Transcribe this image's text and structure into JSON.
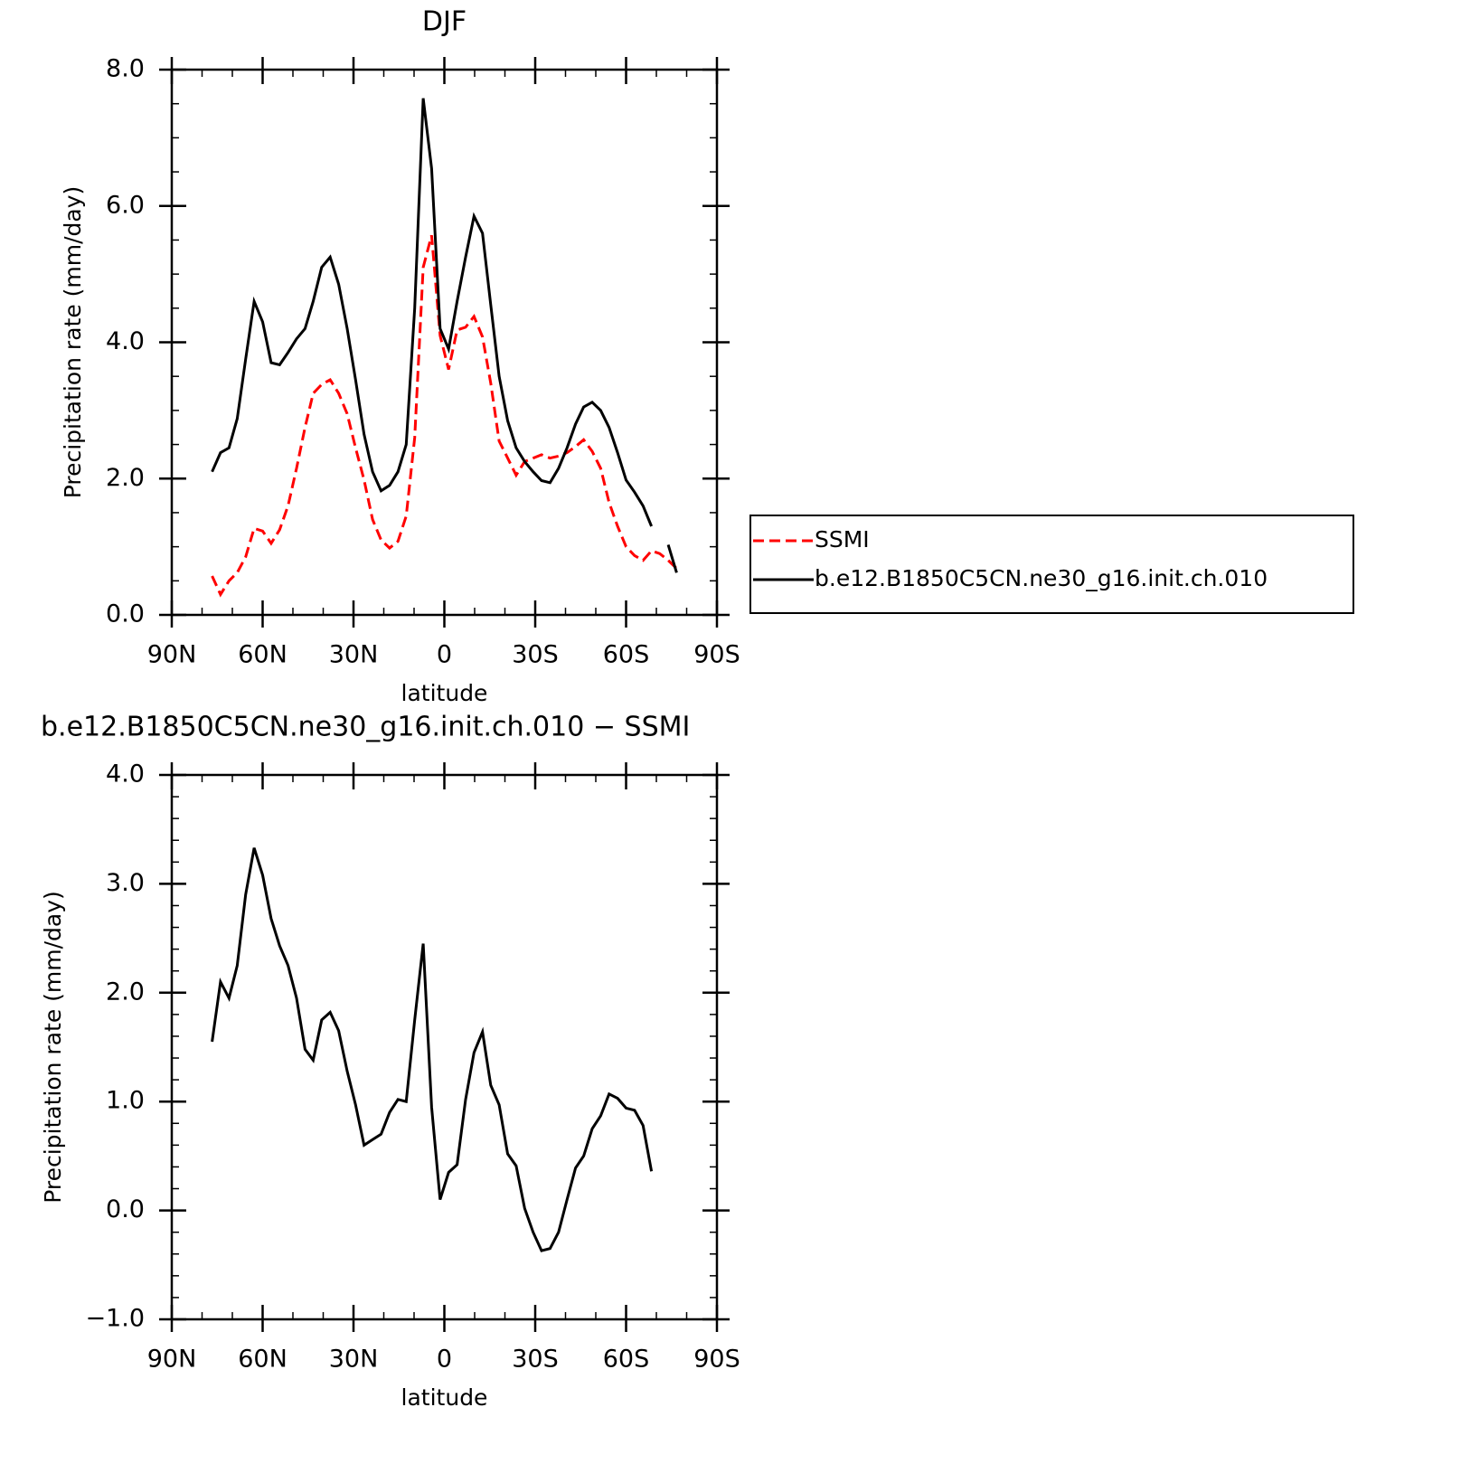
{
  "chart_data": [
    {
      "type": "line",
      "title": "DJF",
      "xlabel": "latitude",
      "ylabel": "Precipitation rate (mm/day)",
      "x": [
        76.7,
        73.9,
        71.1,
        68.4,
        65.6,
        62.8,
        60.0,
        57.2,
        54.4,
        51.6,
        48.8,
        46.0,
        43.3,
        40.5,
        37.7,
        34.9,
        32.1,
        29.3,
        26.5,
        23.7,
        20.9,
        18.1,
        15.3,
        12.6,
        9.8,
        7.0,
        4.2,
        1.4,
        -1.4,
        -4.2,
        -7.0,
        -9.8,
        -12.6,
        -15.3,
        -18.1,
        -20.9,
        -23.7,
        -26.5,
        -29.3,
        -32.1,
        -34.9,
        -37.7,
        -40.5,
        -43.3,
        -46.0,
        -48.8,
        -51.6,
        -54.4,
        -57.2,
        -60.0,
        -62.8,
        -65.6,
        -68.4,
        -71.1,
        -73.9,
        -76.7
      ],
      "xlim": [
        90,
        -90
      ],
      "xticks": [
        {
          "value": 90,
          "label": "90N"
        },
        {
          "value": 60,
          "label": "60N"
        },
        {
          "value": 30,
          "label": "30N"
        },
        0,
        {
          "value": -30,
          "label": "30S"
        },
        {
          "value": -60,
          "label": "60S"
        },
        {
          "value": -90,
          "label": "90S"
        }
      ],
      "xminorticks": [
        80,
        70,
        50,
        40,
        20,
        10,
        -10,
        -20,
        -40,
        -50,
        -70,
        -80
      ],
      "ylim": [
        0,
        8
      ],
      "yticks": [
        {
          "value": 0,
          "label": "0.0"
        },
        {
          "value": 2,
          "label": "2.0"
        },
        {
          "value": 4,
          "label": "4.0"
        },
        {
          "value": 6,
          "label": "6.0"
        },
        {
          "value": 8,
          "label": "8.0"
        }
      ],
      "yminorticks": [
        0.5,
        1,
        1.5,
        2.5,
        3,
        3.5,
        4.5,
        5,
        5.5,
        6.5,
        7,
        7.5
      ],
      "legend": "right",
      "series": [
        {
          "name": "SSMI",
          "color": "#ff0000",
          "dash": "dashed",
          "values": [
            0.57,
            0.3,
            0.5,
            0.62,
            0.85,
            1.27,
            1.23,
            1.05,
            1.25,
            1.6,
            2.15,
            2.75,
            3.25,
            3.38,
            3.45,
            3.25,
            2.95,
            2.45,
            1.98,
            1.4,
            1.1,
            0.98,
            1.08,
            1.45,
            2.6,
            5.1,
            5.57,
            4.1,
            3.6,
            4.18,
            4.22,
            4.38,
            4.08,
            3.4,
            2.55,
            2.3,
            2.05,
            2.25,
            2.3,
            2.35,
            2.3,
            2.33,
            2.38,
            2.47,
            2.57,
            2.4,
            2.15,
            1.65,
            1.3,
            1.0,
            0.87,
            0.8,
            0.94,
            0.9,
            0.8,
            0.68
          ]
        },
        {
          "name": "b.e12.B1850C5CN.ne30_g16.init.ch.010",
          "color": "#000000",
          "dash": "solid",
          "values": [
            2.1,
            2.38,
            2.45,
            2.88,
            3.75,
            4.6,
            4.3,
            3.7,
            3.67,
            3.85,
            4.05,
            4.2,
            4.6,
            5.1,
            5.25,
            4.85,
            4.2,
            3.45,
            2.65,
            2.1,
            1.82,
            1.9,
            2.1,
            2.5,
            4.5,
            7.58,
            6.55,
            4.2,
            3.9,
            4.6,
            5.25,
            5.85,
            5.6,
            4.55,
            3.5,
            2.85,
            2.45,
            2.25,
            2.1,
            1.97,
            1.94,
            2.15,
            2.45,
            2.8,
            3.05,
            3.12,
            3.0,
            2.75,
            2.38,
            1.98,
            1.8,
            1.6,
            1.3,
            null,
            1.03,
            0.62
          ]
        }
      ]
    },
    {
      "type": "line",
      "title": "b.e12.B1850C5CN.ne30_g16.init.ch.010 − SSMI",
      "xlabel": "latitude",
      "ylabel": "Precipitation rate (mm/day)",
      "x": [
        76.7,
        73.9,
        71.1,
        68.4,
        65.6,
        62.8,
        60.0,
        57.2,
        54.4,
        51.6,
        48.8,
        46.0,
        43.3,
        40.5,
        37.7,
        34.9,
        32.1,
        29.3,
        26.5,
        23.7,
        20.9,
        18.1,
        15.3,
        12.6,
        9.8,
        7.0,
        4.2,
        1.4,
        -1.4,
        -4.2,
        -7.0,
        -9.8,
        -12.6,
        -15.3,
        -18.1,
        -20.9,
        -23.7,
        -26.5,
        -29.3,
        -32.1,
        -34.9,
        -37.7,
        -40.5,
        -43.3,
        -46.0,
        -48.8,
        -51.6,
        -54.4,
        -57.2,
        -60.0,
        -62.8,
        -65.6,
        -68.4,
        -71.1,
        -73.9,
        -76.7
      ],
      "xlim": [
        90,
        -90
      ],
      "xticks": [
        {
          "value": 90,
          "label": "90N"
        },
        {
          "value": 60,
          "label": "60N"
        },
        {
          "value": 30,
          "label": "30N"
        },
        0,
        {
          "value": -30,
          "label": "30S"
        },
        {
          "value": -60,
          "label": "60S"
        },
        {
          "value": -90,
          "label": "90S"
        }
      ],
      "xminorticks": [
        80,
        70,
        50,
        40,
        20,
        10,
        -10,
        -20,
        -40,
        -50,
        -70,
        -80
      ],
      "ylim": [
        -1,
        4
      ],
      "yticks": [
        {
          "value": -1,
          "label": "−1.0"
        },
        {
          "value": 0,
          "label": "0.0"
        },
        {
          "value": 1,
          "label": "1.0"
        },
        {
          "value": 2,
          "label": "2.0"
        },
        {
          "value": 3,
          "label": "3.0"
        },
        {
          "value": 4,
          "label": "4.0"
        }
      ],
      "yminorticks": [
        -0.8,
        -0.6,
        -0.4,
        -0.2,
        0.2,
        0.4,
        0.6,
        0.8,
        1.2,
        1.4,
        1.6,
        1.8,
        2.2,
        2.4,
        2.6,
        2.8,
        3.2,
        3.4,
        3.6,
        3.8
      ],
      "series": [
        {
          "color": "#000000",
          "dash": "solid",
          "values": [
            1.55,
            2.1,
            1.95,
            2.25,
            2.9,
            3.33,
            3.08,
            2.68,
            2.43,
            2.25,
            1.95,
            1.48,
            1.38,
            1.75,
            1.82,
            1.65,
            1.28,
            0.97,
            0.6,
            0.65,
            0.7,
            0.9,
            1.02,
            1.0,
            1.75,
            2.45,
            0.95,
            0.1,
            0.35,
            0.42,
            1.02,
            1.45,
            1.64,
            1.15,
            0.97,
            0.52,
            0.41,
            0.02,
            -0.2,
            -0.37,
            -0.35,
            -0.2,
            0.1,
            0.39,
            0.5,
            0.75,
            0.87,
            1.07,
            1.03,
            0.94,
            0.92,
            0.78,
            0.36,
            null,
            null,
            null
          ]
        }
      ]
    }
  ]
}
